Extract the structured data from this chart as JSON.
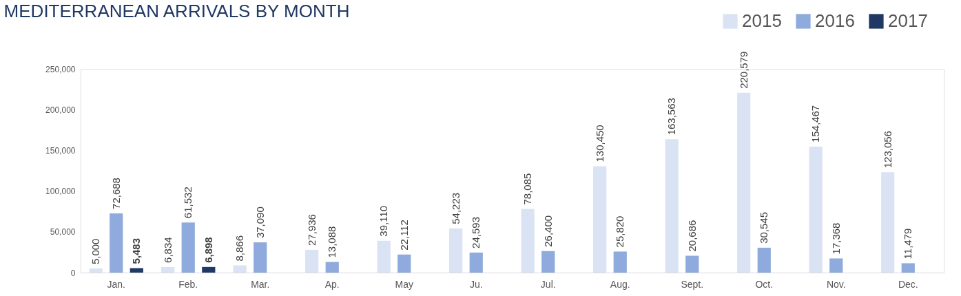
{
  "chart_data": {
    "type": "bar",
    "title": "MEDITERRANEAN ARRIVALS BY MONTH",
    "categories": [
      "Jan.",
      "Feb.",
      "Mar.",
      "Ap.",
      "May",
      "Ju.",
      "Jul.",
      "Aug.",
      "Sept.",
      "Oct.",
      "Nov.",
      "Dec."
    ],
    "series": [
      {
        "name": "2015",
        "color": "#dae3f3",
        "values": [
          5000,
          6834,
          8866,
          27936,
          39110,
          54223,
          78085,
          130450,
          163563,
          220579,
          154467,
          123056
        ],
        "value_labels": [
          "5,000",
          "6,834",
          "8,866",
          "27,936",
          "39,110",
          "54,223",
          "78,085",
          "130,450",
          "163,563",
          "220,579",
          "154,467",
          "123,056"
        ]
      },
      {
        "name": "2016",
        "color": "#8faadc",
        "values": [
          72688,
          61532,
          37090,
          13088,
          22112,
          24593,
          26400,
          25820,
          20686,
          30545,
          17368,
          11479
        ],
        "value_labels": [
          "72,688",
          "61,532",
          "37,090",
          "13,088",
          "22,112",
          "24,593",
          "26,400",
          "25,820",
          "20,686",
          "30,545",
          "17,368",
          "11,479"
        ]
      },
      {
        "name": "2017",
        "color": "#203864",
        "values": [
          5483,
          6898,
          null,
          null,
          null,
          null,
          null,
          null,
          null,
          null,
          null,
          null
        ],
        "value_labels": [
          "5,483",
          "6,898",
          null,
          null,
          null,
          null,
          null,
          null,
          null,
          null,
          null,
          null
        ]
      }
    ],
    "ylim": [
      0,
      250000
    ],
    "yticks": [
      0,
      {
        "value": 50000,
        "label": "50,000"
      },
      {
        "value": 100000,
        "label": "100,000"
      },
      {
        "value": 150000,
        "label": "150,000"
      },
      {
        "value": 200000,
        "label": "200,000"
      },
      {
        "value": 250000,
        "label": "250,000"
      }
    ],
    "grid": false,
    "legend": "top right"
  }
}
